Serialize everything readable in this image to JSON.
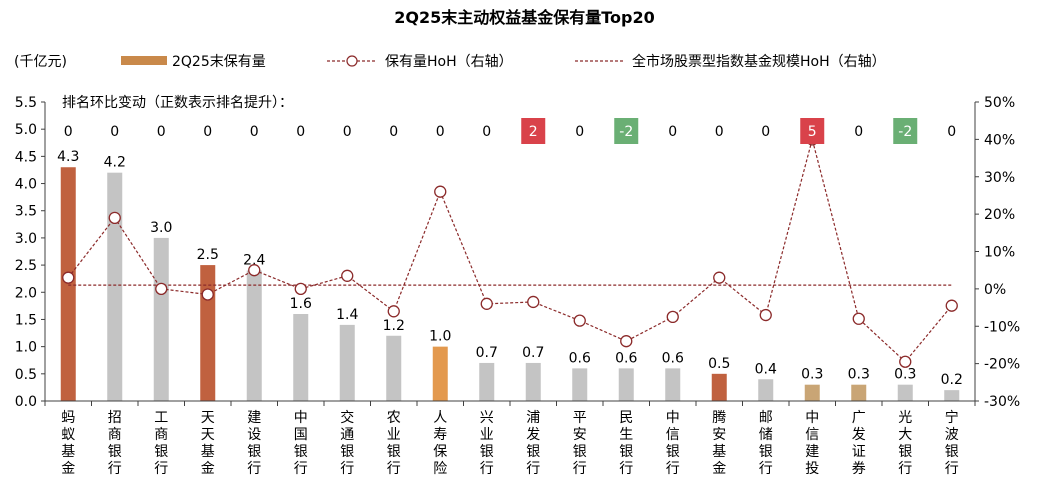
{
  "chart_data": {
    "type": "bar",
    "title": "2Q25末主动权益基金保有量Top20",
    "unit_label": "(千亿元)",
    "rank_note": "排名环比变动（正数表示排名提升）：",
    "legend": {
      "bar": "2Q25末保有量",
      "hoh": "保有量HoH（右轴）",
      "market": "全市场股票型指数基金规模HoH（右轴）"
    },
    "legend_placement": "top",
    "left_axis": {
      "min": 0,
      "max": 5.5,
      "step": 0.5,
      "ticks": [
        "0.0",
        "0.5",
        "1.0",
        "1.5",
        "2.0",
        "2.5",
        "3.0",
        "3.5",
        "4.0",
        "4.5",
        "5.0",
        "5.5"
      ]
    },
    "right_axis": {
      "min": -30,
      "max": 50,
      "step": 10,
      "ticks": [
        "-30%",
        "-20%",
        "-10%",
        "0%",
        "10%",
        "20%",
        "30%",
        "40%",
        "50%"
      ]
    },
    "grid": false,
    "categories": [
      "蚂蚁基金",
      "招商银行",
      "工商银行",
      "天天基金",
      "建设银行",
      "中国银行",
      "交通银行",
      "农业银行",
      "人寿保险",
      "兴业银行",
      "浦发银行",
      "平安银行",
      "民生银行",
      "中信银行",
      "腾安基金",
      "邮储银行",
      "中信建投",
      "广发证券",
      "光大银行",
      "宁波银行"
    ],
    "values": [
      4.3,
      4.2,
      3.0,
      2.5,
      2.4,
      1.6,
      1.4,
      1.2,
      1.0,
      0.7,
      0.7,
      0.6,
      0.6,
      0.6,
      0.5,
      0.4,
      0.3,
      0.3,
      0.3,
      0.2
    ],
    "value_labels": [
      "4.3",
      "4.2",
      "3.0",
      "2.5",
      "2.4",
      "1.6",
      "1.4",
      "1.2",
      "1.0",
      "0.7",
      "0.7",
      "0.6",
      "0.6",
      "0.6",
      "0.5",
      "0.4",
      "0.3",
      "0.3",
      "0.3",
      "0.2"
    ],
    "bar_groups": [
      "platform",
      "bank",
      "bank",
      "platform",
      "bank",
      "bank",
      "bank",
      "bank",
      "insurance",
      "bank",
      "bank",
      "bank",
      "bank",
      "bank",
      "platform",
      "bank",
      "broker",
      "broker",
      "bank",
      "bank"
    ],
    "hoh_pct": [
      3,
      19,
      0,
      -1.5,
      5,
      0,
      3.5,
      -6,
      26,
      -4,
      -3.5,
      -8.5,
      -14,
      -7.5,
      3,
      -7,
      40,
      -8,
      -19.5,
      -4.5
    ],
    "market_hoh_pct": 1,
    "rank_changes": [
      "0",
      "0",
      "0",
      "0",
      "0",
      "0",
      "0",
      "0",
      "0",
      "0",
      "2",
      "0",
      "-2",
      "0",
      "0",
      "0",
      "5",
      "0",
      "-2",
      "0"
    ],
    "colors": {
      "platform": "#c0613f",
      "bank": "#c4c4c4",
      "insurance": "#e3994e",
      "broker": "#c9a575",
      "legend_bar": "#c9894a",
      "line": "#8b2a2a",
      "rank_up": "#d9424a",
      "rank_down": "#6aaf74",
      "axis": "#404040"
    }
  }
}
